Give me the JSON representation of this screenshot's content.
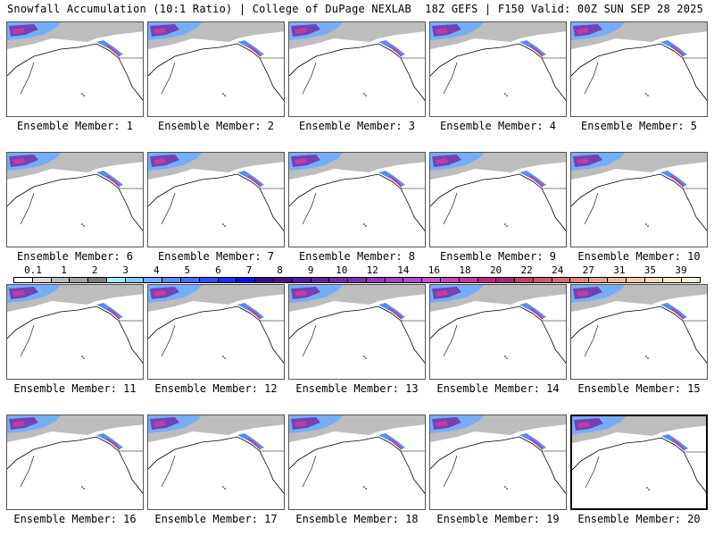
{
  "header": {
    "title_left": "Snowfall Accumulation (10:1 Ratio) | College of DuPage NEXLAB",
    "title_right": "18Z GEFS | F150 Valid: 00Z SUN SEP 28 2025"
  },
  "panels": [
    {
      "label": "Ensemble Member: 1"
    },
    {
      "label": "Ensemble Member: 2"
    },
    {
      "label": "Ensemble Member: 3"
    },
    {
      "label": "Ensemble Member: 4"
    },
    {
      "label": "Ensemble Member: 5"
    },
    {
      "label": "Ensemble Member: 6"
    },
    {
      "label": "Ensemble Member: 7"
    },
    {
      "label": "Ensemble Member: 8"
    },
    {
      "label": "Ensemble Member: 9"
    },
    {
      "label": "Ensemble Member: 10"
    },
    {
      "label": "Ensemble Member: 11"
    },
    {
      "label": "Ensemble Member: 12"
    },
    {
      "label": "Ensemble Member: 13"
    },
    {
      "label": "Ensemble Member: 14"
    },
    {
      "label": "Ensemble Member: 15"
    },
    {
      "label": "Ensemble Member: 16"
    },
    {
      "label": "Ensemble Member: 17"
    },
    {
      "label": "Ensemble Member: 18"
    },
    {
      "label": "Ensemble Member: 19"
    },
    {
      "label": "Ensemble Member: 20"
    }
  ],
  "colorbar": {
    "labels": [
      "0.1",
      "1",
      "2",
      "3",
      "4",
      "5",
      "6",
      "7",
      "8",
      "9",
      "10",
      "12",
      "14",
      "16",
      "18",
      "20",
      "22",
      "24",
      "27",
      "31",
      "35",
      "39"
    ],
    "colors": [
      "#ffffff",
      "#d8d8d8",
      "#bdbdbd",
      "#a4a4a4",
      "#7d7d7d",
      "#9ff0f0",
      "#88cbf2",
      "#76aef5",
      "#5c8bf5",
      "#4a6ff6",
      "#3250f8",
      "#1a2ff8",
      "#0b10f5",
      "#3a0a8a",
      "#48118f",
      "#561a96",
      "#661f9e",
      "#7427a8",
      "#8230b0",
      "#9238b8",
      "#a244be",
      "#b04cc6",
      "#c054c8",
      "#c24ab0",
      "#c03e9c",
      "#b82e86",
      "#b12474",
      "#c0406c",
      "#c75a6e",
      "#d06e70",
      "#dc8878",
      "#e8a286",
      "#efb898",
      "#f5caa9",
      "#f8d9bb",
      "#fbe6ca",
      "#fdf0d8"
    ]
  }
}
